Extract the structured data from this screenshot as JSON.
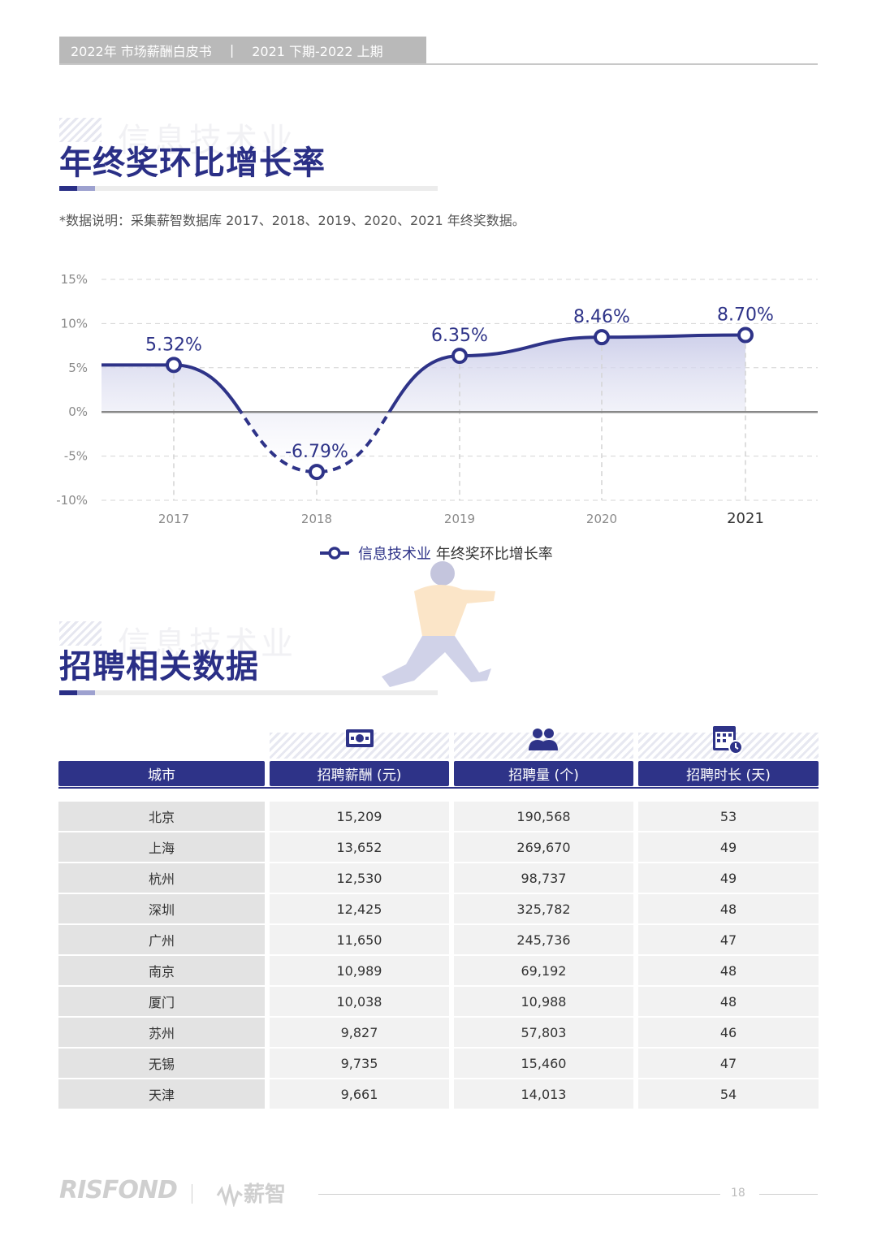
{
  "header": {
    "left": "2022年 市场薪酬白皮书",
    "sep": "|",
    "right": "2021 下期-2022 上期"
  },
  "section1": {
    "ghost": "信息技术业",
    "title": "年终奖环比增长率",
    "note": "*数据说明：采集薪智数据库 2017、2018、2019、2020、2021 年终奖数据。"
  },
  "chart_data": {
    "type": "line",
    "x": [
      "2017",
      "2018",
      "2019",
      "2020",
      "2021"
    ],
    "series": [
      {
        "name": "信息技术业 年终奖环比增长率",
        "values": [
          5.32,
          -6.79,
          6.35,
          8.46,
          8.7
        ]
      }
    ],
    "data_labels": [
      "5.32%",
      "-6.79%",
      "6.35%",
      "8.46%",
      "8.70%"
    ],
    "y_ticks": [
      "15%",
      "10%",
      "5%",
      "0%",
      "-5%",
      "-10%"
    ],
    "ylim": [
      -10,
      15
    ],
    "grid": true,
    "legend": "bottom",
    "legend_name_part": "信息技术业",
    "legend_rest_part": " 年终奖环比增长率",
    "color": "#2e3388"
  },
  "section2": {
    "ghost": "信息技术业",
    "title": "招聘相关数据"
  },
  "table": {
    "headers": [
      "城市",
      "招聘薪酬 (元)",
      "招聘量 (个)",
      "招聘时长 (天)"
    ],
    "icons": [
      "money-icon",
      "people-icon",
      "calendar-clock-icon"
    ],
    "rows": [
      [
        "北京",
        "15,209",
        "190,568",
        "53"
      ],
      [
        "上海",
        "13,652",
        "269,670",
        "49"
      ],
      [
        "杭州",
        "12,530",
        "98,737",
        "49"
      ],
      [
        "深圳",
        "12,425",
        "325,782",
        "48"
      ],
      [
        "广州",
        "11,650",
        "245,736",
        "47"
      ],
      [
        "南京",
        "10,989",
        "69,192",
        "48"
      ],
      [
        "厦门",
        "10,038",
        "10,988",
        "48"
      ],
      [
        "苏州",
        "9,827",
        "57,803",
        "46"
      ],
      [
        "无锡",
        "9,735",
        "15,460",
        "47"
      ],
      [
        "天津",
        "9,661",
        "14,013",
        "54"
      ]
    ]
  },
  "footer": {
    "logo": "RISFOND",
    "brand": "薪智",
    "page": "18"
  }
}
